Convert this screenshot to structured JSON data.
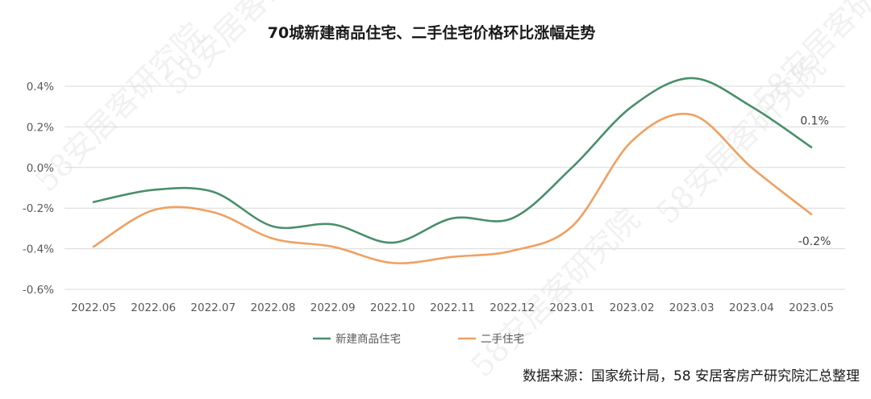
{
  "chart_data": {
    "type": "line",
    "title": "70城新建商品住宅、二手住宅价格环比涨幅走势",
    "categories": [
      "2022.05",
      "2022.06",
      "2022.07",
      "2022.08",
      "2022.09",
      "2022.10",
      "2022.11",
      "2022.12",
      "2023.01",
      "2023.02",
      "2023.03",
      "2023.04",
      "2023.05"
    ],
    "ylim": [
      -0.6,
      0.4
    ],
    "yticks": [
      -0.6,
      -0.4,
      -0.2,
      0.0,
      0.2,
      0.4
    ],
    "ytick_labels": [
      "-0.6%",
      "-0.4%",
      "-0.2%",
      "0.0%",
      "0.2%",
      "0.4%"
    ],
    "series": [
      {
        "name": "新建商品住宅",
        "color": "#4a8f6a",
        "values": [
          -0.17,
          -0.11,
          -0.12,
          -0.29,
          -0.28,
          -0.37,
          -0.25,
          -0.25,
          0.0,
          0.3,
          0.44,
          0.3,
          0.1
        ],
        "end_label": "0.1%"
      },
      {
        "name": "二手住宅",
        "color": "#f0a060",
        "values": [
          -0.39,
          -0.21,
          -0.22,
          -0.35,
          -0.39,
          -0.47,
          -0.44,
          -0.41,
          -0.29,
          0.13,
          0.26,
          0.0,
          -0.23
        ],
        "end_label": "-0.2%"
      }
    ],
    "legend_position": "bottom-center",
    "grid": true
  },
  "source_text": "数据来源：国家统计局，58 安居客房产研究院汇总整理",
  "watermark_text": "58安居客研究院"
}
